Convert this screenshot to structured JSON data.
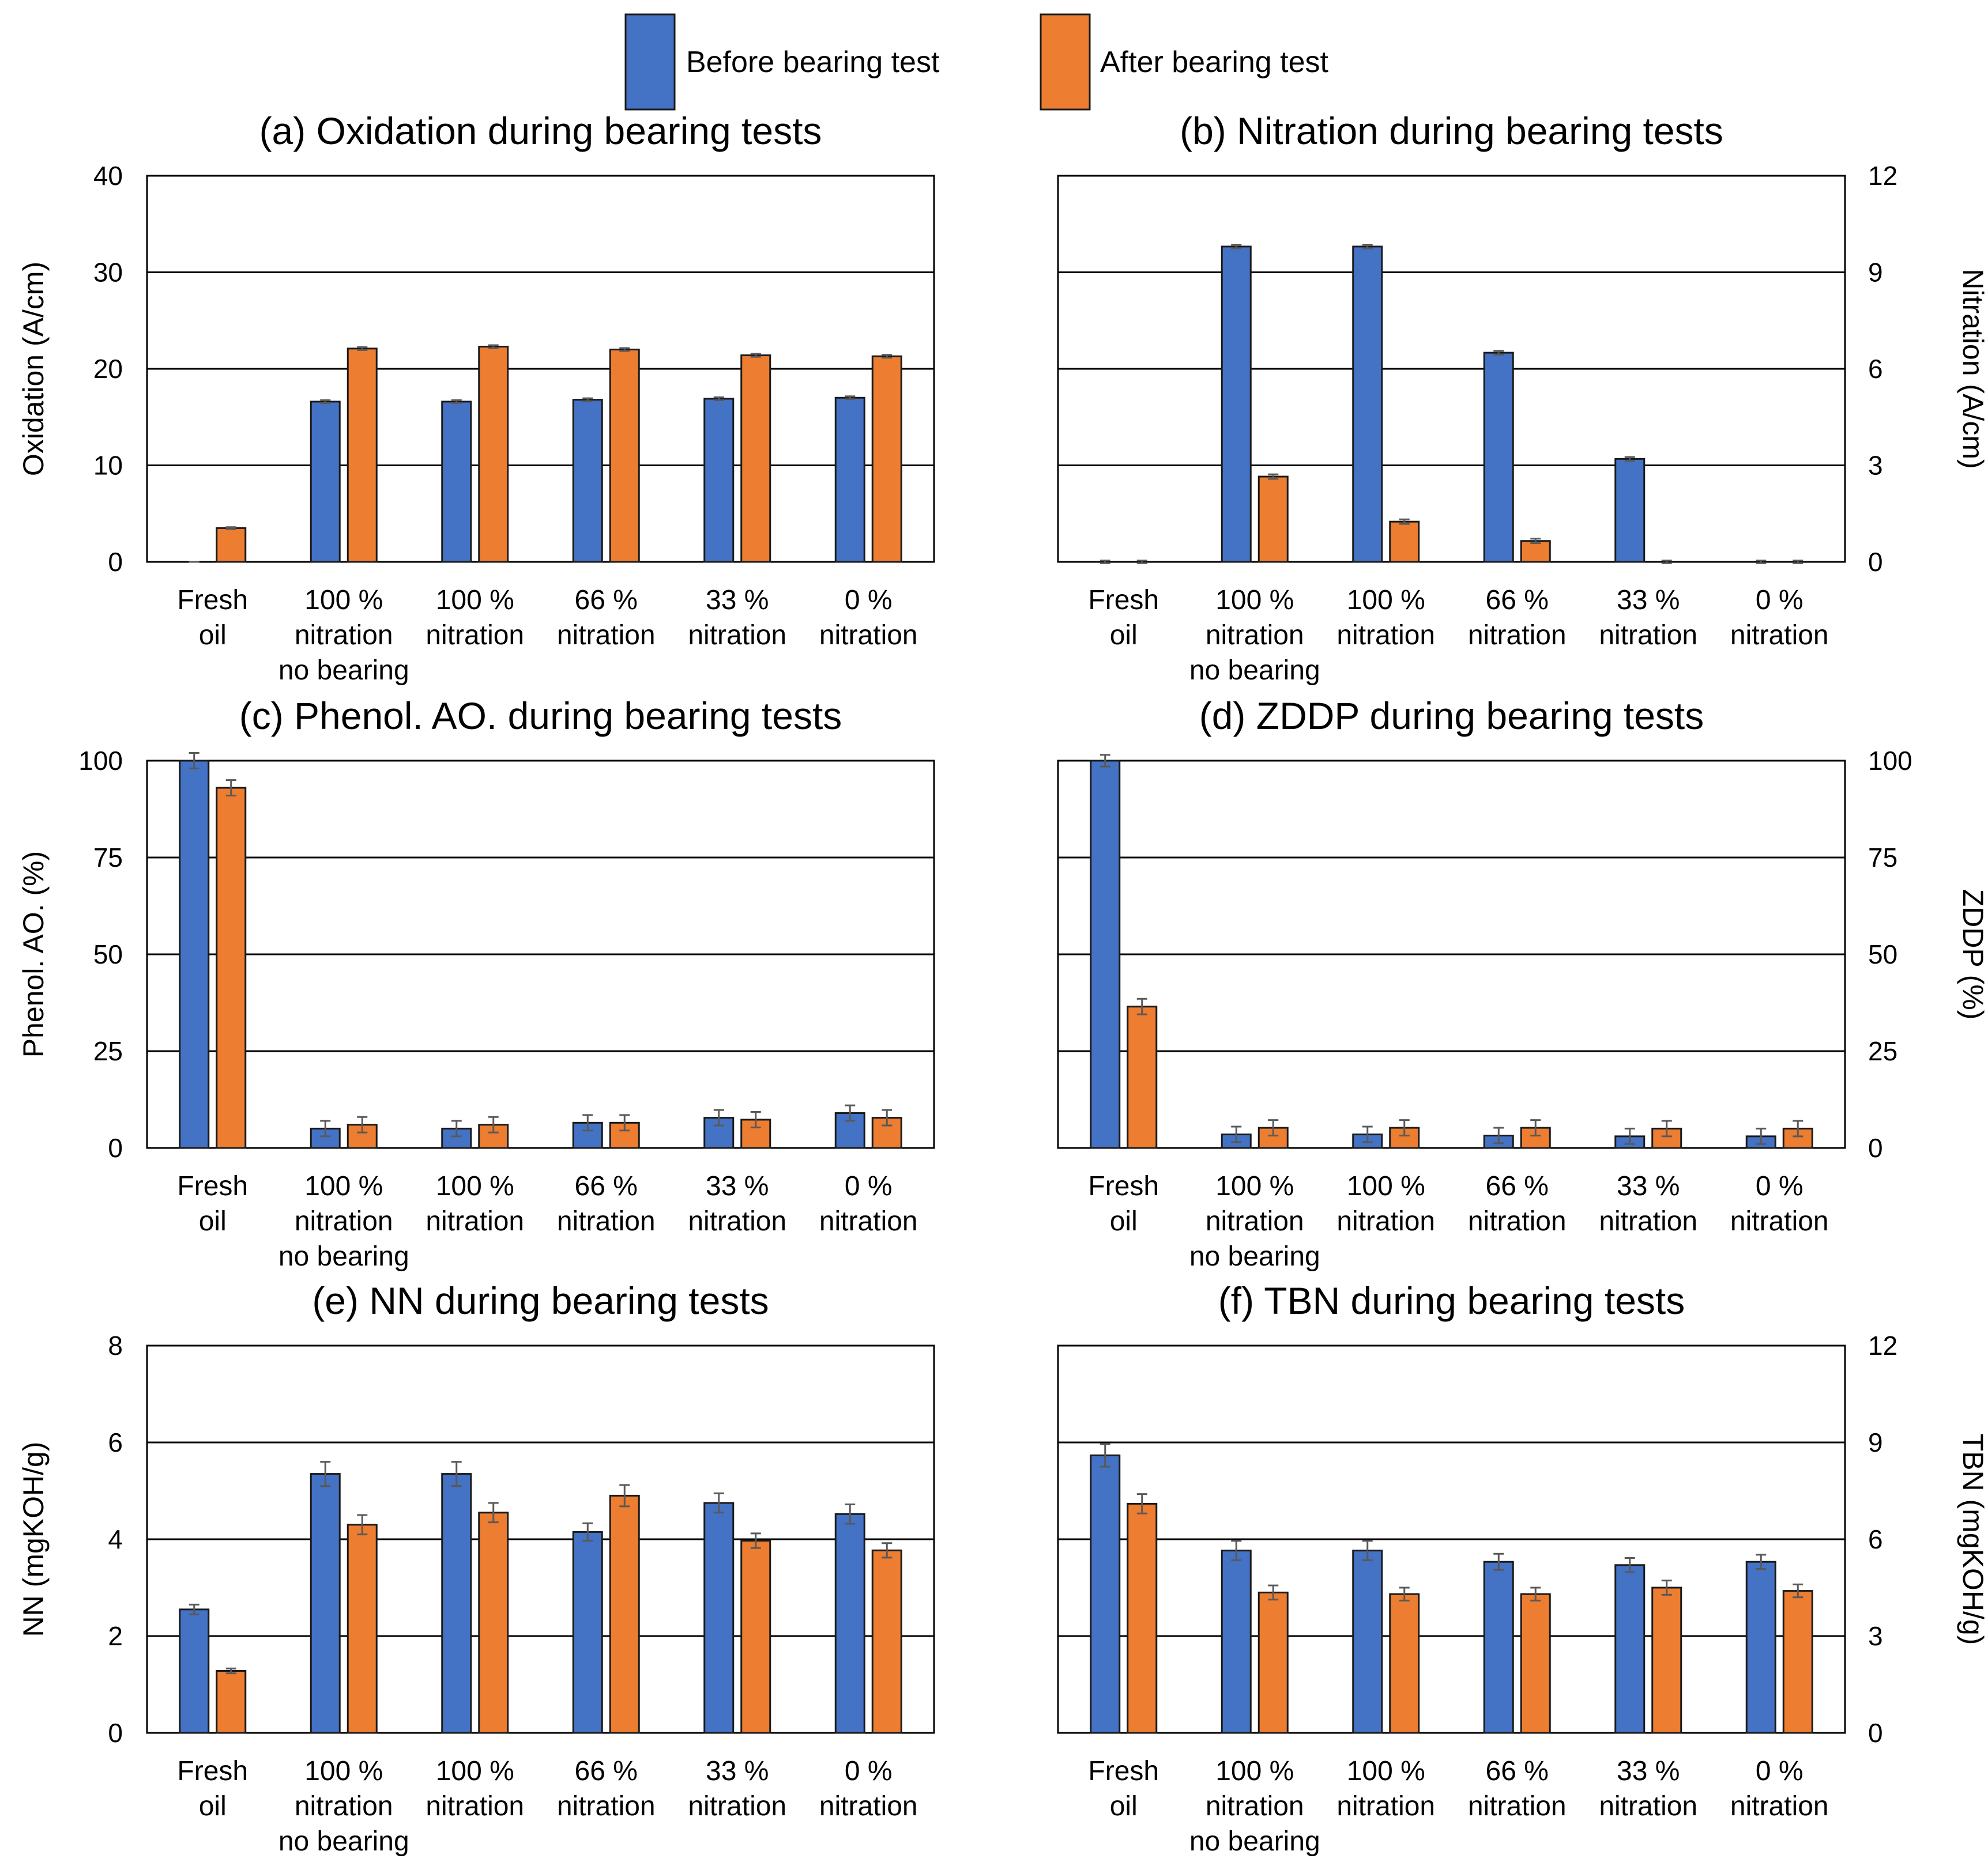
{
  "legend": {
    "before_label": "Before bearing test",
    "after_label": "After bearing test",
    "before_color": "#4472C4",
    "after_color": "#ED7D31"
  },
  "chart_data": [
    {
      "id": "a",
      "type": "bar",
      "title": "(a) Oxidation during bearing tests",
      "ylabel": "Oxidation (A/cm)",
      "ylim": [
        0,
        40
      ],
      "yticks": [
        0,
        10,
        20,
        30,
        40
      ],
      "yaxis_side": "left",
      "categories": [
        [
          "Fresh",
          "oil"
        ],
        [
          "100 %",
          "nitration",
          "no bearing"
        ],
        [
          "100 %",
          "nitration"
        ],
        [
          "66 %",
          "nitration"
        ],
        [
          "33 %",
          "nitration"
        ],
        [
          "0 %",
          "nitration"
        ]
      ],
      "series": [
        {
          "name": "Before bearing test",
          "values": [
            0,
            16.6,
            16.6,
            16.8,
            16.9,
            17.0
          ],
          "errors": [
            0,
            0.15,
            0.15,
            0.15,
            0.15,
            0.15
          ]
        },
        {
          "name": "After bearing test",
          "values": [
            3.5,
            22.1,
            22.3,
            22.0,
            21.4,
            21.3
          ],
          "errors": [
            0.1,
            0.15,
            0.15,
            0.15,
            0.15,
            0.15
          ]
        }
      ]
    },
    {
      "id": "b",
      "type": "bar",
      "title": "(b) Nitration during bearing tests",
      "ylabel": "Nitration (A/cm)",
      "ylim": [
        0,
        12
      ],
      "yticks": [
        0,
        3,
        6,
        9,
        12
      ],
      "yaxis_side": "right",
      "categories": [
        [
          "Fresh",
          "oil"
        ],
        [
          "100 %",
          "nitration",
          "no bearing"
        ],
        [
          "100 %",
          "nitration"
        ],
        [
          "66 %",
          "nitration"
        ],
        [
          "33 %",
          "nitration"
        ],
        [
          "0 %",
          "nitration"
        ]
      ],
      "series": [
        {
          "name": "Before bearing test",
          "values": [
            0,
            9.8,
            9.8,
            6.5,
            3.2,
            0
          ],
          "errors": [
            0.04,
            0.06,
            0.06,
            0.06,
            0.06,
            0.04
          ]
        },
        {
          "name": "After bearing test",
          "values": [
            0,
            2.65,
            1.25,
            0.65,
            0,
            0
          ],
          "errors": [
            0.04,
            0.07,
            0.07,
            0.07,
            0.04,
            0.04
          ]
        }
      ]
    },
    {
      "id": "c",
      "type": "bar",
      "title": "(c) Phenol. AO. during bearing tests",
      "ylabel": "Phenol. AO. (%)",
      "ylim": [
        0,
        100
      ],
      "yticks": [
        0,
        25,
        50,
        75,
        100
      ],
      "yaxis_side": "left",
      "categories": [
        [
          "Fresh",
          "oil"
        ],
        [
          "100 %",
          "nitration",
          "no bearing"
        ],
        [
          "100 %",
          "nitration"
        ],
        [
          "66 %",
          "nitration"
        ],
        [
          "33 %",
          "nitration"
        ],
        [
          "0 %",
          "nitration"
        ]
      ],
      "series": [
        {
          "name": "Before bearing test",
          "values": [
            100,
            5,
            5,
            6.5,
            7.8,
            9
          ],
          "errors": [
            2,
            2,
            2,
            2,
            2,
            2
          ]
        },
        {
          "name": "After bearing test",
          "values": [
            93,
            6,
            6,
            6.5,
            7.3,
            7.8
          ],
          "errors": [
            2,
            2,
            2,
            2,
            2,
            2
          ]
        }
      ]
    },
    {
      "id": "d",
      "type": "bar",
      "title": "(d) ZDDP during bearing tests",
      "ylabel": "ZDDP (%)",
      "ylim": [
        0,
        100
      ],
      "yticks": [
        0,
        25,
        50,
        75,
        100
      ],
      "yaxis_side": "right",
      "categories": [
        [
          "Fresh",
          "oil"
        ],
        [
          "100 %",
          "nitration",
          "no bearing"
        ],
        [
          "100 %",
          "nitration"
        ],
        [
          "66 %",
          "nitration"
        ],
        [
          "33 %",
          "nitration"
        ],
        [
          "0 %",
          "nitration"
        ]
      ],
      "series": [
        {
          "name": "Before bearing test",
          "values": [
            100,
            3.5,
            3.5,
            3.2,
            3,
            3
          ],
          "errors": [
            1.5,
            2,
            2,
            2,
            2,
            2
          ]
        },
        {
          "name": "After bearing test",
          "values": [
            36.5,
            5.2,
            5.2,
            5.2,
            5,
            5
          ],
          "errors": [
            2,
            2,
            2,
            2,
            2,
            2
          ]
        }
      ]
    },
    {
      "id": "e",
      "type": "bar",
      "title": "(e) NN during bearing tests",
      "ylabel": "NN (mgKOH/g)",
      "ylim": [
        0,
        8
      ],
      "yticks": [
        0,
        2,
        4,
        6,
        8
      ],
      "yaxis_side": "left",
      "categories": [
        [
          "Fresh",
          "oil"
        ],
        [
          "100 %",
          "nitration",
          "no bearing"
        ],
        [
          "100 %",
          "nitration"
        ],
        [
          "66 %",
          "nitration"
        ],
        [
          "33 %",
          "nitration"
        ],
        [
          "0 %",
          "nitration"
        ]
      ],
      "series": [
        {
          "name": "Before bearing test",
          "values": [
            2.55,
            5.35,
            5.35,
            4.15,
            4.75,
            4.52
          ],
          "errors": [
            0.1,
            0.25,
            0.25,
            0.18,
            0.2,
            0.2
          ]
        },
        {
          "name": "After bearing test",
          "values": [
            1.28,
            4.3,
            4.55,
            4.9,
            3.97,
            3.77
          ],
          "errors": [
            0.05,
            0.2,
            0.2,
            0.22,
            0.15,
            0.15
          ]
        }
      ]
    },
    {
      "id": "f",
      "type": "bar",
      "title": "(f) TBN during bearing tests",
      "ylabel": "TBN (mgKOH/g)",
      "ylim": [
        0,
        12
      ],
      "yticks": [
        0,
        3,
        6,
        9,
        12
      ],
      "yaxis_side": "right",
      "categories": [
        [
          "Fresh",
          "oil"
        ],
        [
          "100 %",
          "nitration",
          "no bearing"
        ],
        [
          "100 %",
          "nitration"
        ],
        [
          "66 %",
          "nitration"
        ],
        [
          "33 %",
          "nitration"
        ],
        [
          "0 %",
          "nitration"
        ]
      ],
      "series": [
        {
          "name": "Before bearing test",
          "values": [
            8.6,
            5.65,
            5.65,
            5.3,
            5.2,
            5.3
          ],
          "errors": [
            0.35,
            0.3,
            0.3,
            0.25,
            0.22,
            0.22
          ]
        },
        {
          "name": "After bearing test",
          "values": [
            7.1,
            4.35,
            4.3,
            4.3,
            4.5,
            4.4
          ],
          "errors": [
            0.3,
            0.22,
            0.2,
            0.2,
            0.22,
            0.2
          ]
        }
      ]
    }
  ]
}
